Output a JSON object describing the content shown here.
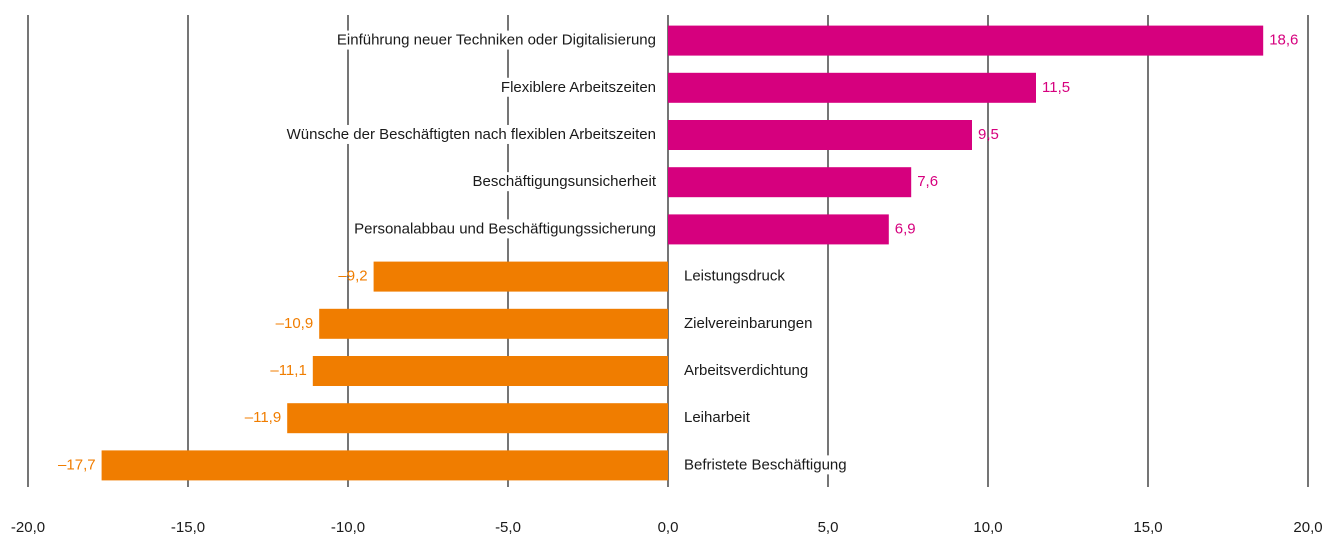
{
  "chart_data": {
    "type": "bar",
    "orientation": "horizontal",
    "categories": [
      "Einführung neuer Techniken oder Digitalisierung",
      "Flexiblere Arbeitszeiten",
      "Wünsche der Beschäftigten nach flexiblen Arbeitszeiten",
      "Beschäftigungsunsicherheit",
      "Personalabbau und Beschäftigungssicherung",
      "Leistungsdruck",
      "Zielvereinbarungen",
      "Arbeitsverdichtung",
      "Leiharbeit",
      "Befristete Beschäftigung"
    ],
    "values": [
      18.6,
      11.5,
      9.5,
      7.6,
      6.9,
      -9.2,
      -10.9,
      -11.1,
      -11.9,
      -17.7
    ],
    "value_labels": [
      "18,6",
      "11,5",
      "9,5",
      "7,6",
      "6,9",
      "–9,2",
      "–10,9",
      "–11,1",
      "–11,9",
      "–17,7"
    ],
    "colors": [
      "#d6007e",
      "#d6007e",
      "#d6007e",
      "#d6007e",
      "#d6007e",
      "#f07d00",
      "#f07d00",
      "#f07d00",
      "#f07d00",
      "#f07d00"
    ],
    "xlim": [
      -20,
      20
    ],
    "xticks": [
      {
        "value": -20,
        "label": "-20,0"
      },
      {
        "value": -15,
        "label": "-15,0"
      },
      {
        "value": -10,
        "label": "-10,0"
      },
      {
        "value": -5,
        "label": "-5,0"
      },
      {
        "value": 0,
        "label": "0,0"
      },
      {
        "value": 5,
        "label": "5,0"
      },
      {
        "value": 10,
        "label": "10,0"
      },
      {
        "value": 15,
        "label": "15,0"
      },
      {
        "value": 20,
        "label": "20,0"
      }
    ],
    "grid": true
  }
}
